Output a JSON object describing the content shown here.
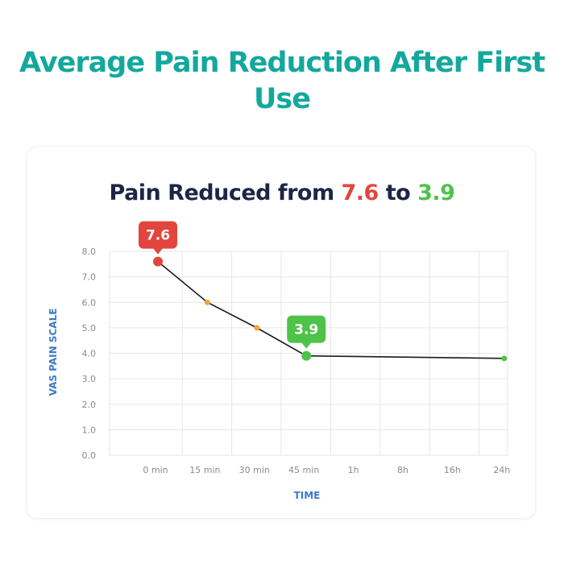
{
  "page": {
    "title": "Average Pain Reduction After First Use"
  },
  "chart_data": {
    "type": "line",
    "title_parts": {
      "prefix": "Pain Reduced from ",
      "from_value": "7.6",
      "middle": " to ",
      "to_value": "3.9"
    },
    "xlabel": "TIME",
    "ylabel": "VAS PAIN SCALE",
    "categories": [
      "0 min",
      "15 min",
      "30 min",
      "45 min",
      "1h",
      "8h",
      "16h",
      "24h"
    ],
    "y_ticks": [
      "0.0",
      "1.0",
      "2.0",
      "3.0",
      "4.0",
      "5.0",
      "6.0",
      "7.0",
      "8.0"
    ],
    "ylim": [
      0,
      8
    ],
    "grid": true,
    "series": [
      {
        "points": [
          {
            "x": "0 min",
            "y": 7.6
          },
          {
            "x": "15 min",
            "y": 6.0
          },
          {
            "x": "30 min",
            "y": 5.0
          },
          {
            "x": "45 min",
            "y": 3.9
          },
          {
            "x": "24h",
            "y": 3.8
          }
        ]
      }
    ],
    "annotations": [
      {
        "x": "0 min",
        "y": 7.6,
        "text": "7.6",
        "color": "#e2453d"
      },
      {
        "x": "45 min",
        "y": 3.9,
        "text": "3.9",
        "color": "#4fc24a"
      }
    ],
    "colors": {
      "line": "#1a1a1a",
      "start_point": "#e2453d",
      "mid_point": "#f2a533",
      "end_point": "#4fc24a",
      "grid": "#e6e6e6",
      "axis_label": "#3a7bc8",
      "tick": "#8a8a8a"
    }
  }
}
